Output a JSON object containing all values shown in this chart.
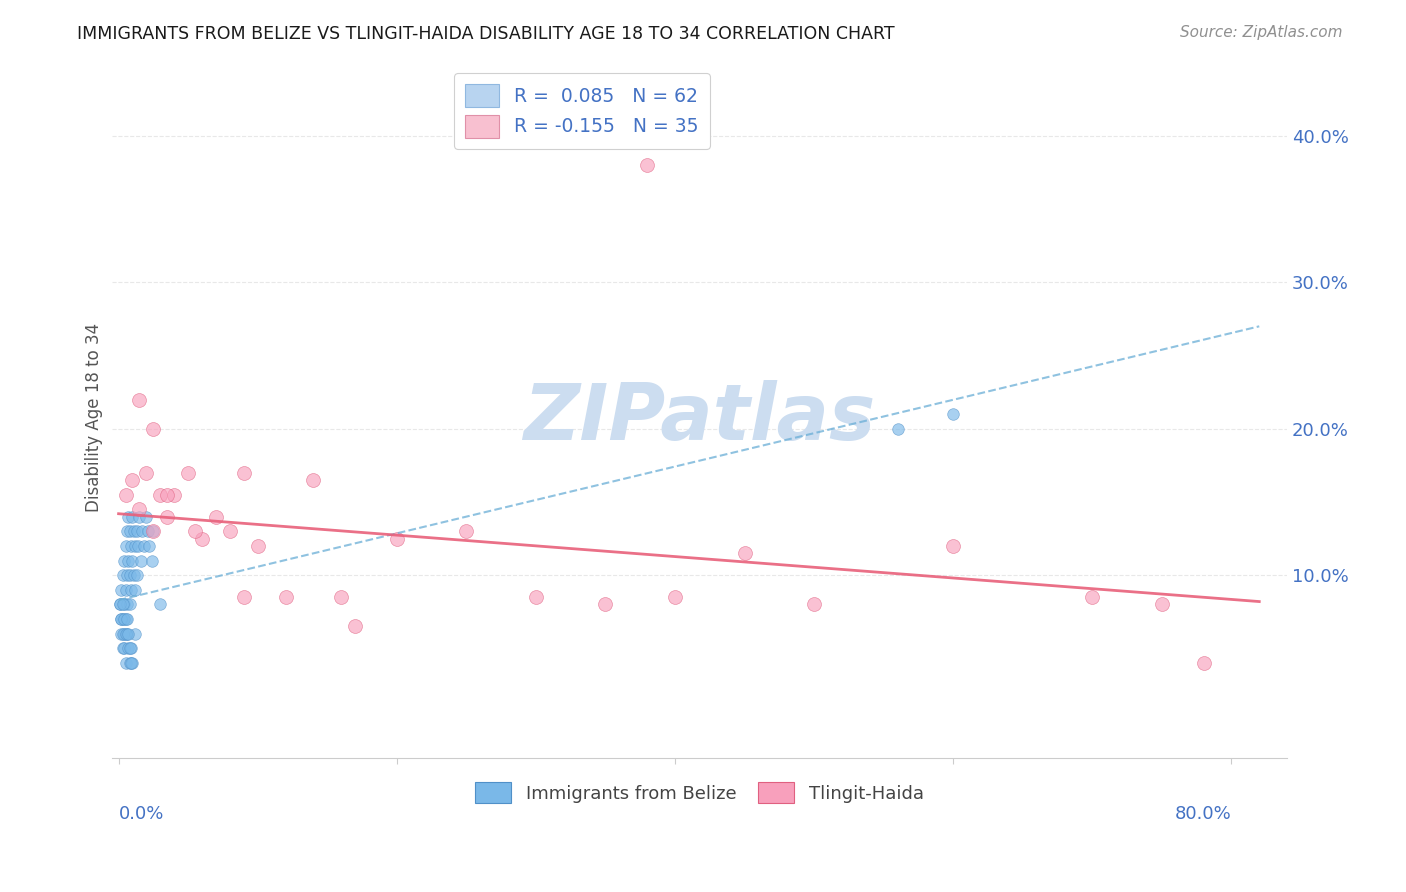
{
  "title": "IMMIGRANTS FROM BELIZE VS TLINGIT-HAIDA DISABILITY AGE 18 TO 34 CORRELATION CHART",
  "source": "Source: ZipAtlas.com",
  "ylabel": "Disability Age 18 to 34",
  "ytick_values": [
    0.0,
    0.1,
    0.2,
    0.3,
    0.4
  ],
  "ytick_labels": [
    "",
    "10.0%",
    "20.0%",
    "30.0%",
    "40.0%"
  ],
  "xtick_values": [
    0.0,
    0.2,
    0.4,
    0.6,
    0.8
  ],
  "xlim": [
    -0.005,
    0.84
  ],
  "ylim": [
    -0.025,
    0.44
  ],
  "legend_entries": [
    {
      "label": "R =  0.085   N = 62",
      "facecolor": "#b8d4f0",
      "edgecolor": "#90b8e0"
    },
    {
      "label": "R = -0.155   N = 35",
      "facecolor": "#f8c0d0",
      "edgecolor": "#e090a8"
    }
  ],
  "series_belize": {
    "facecolor": "#7ab8e8",
    "edgecolor": "#5090c8",
    "alpha": 0.65,
    "size": 70,
    "x": [
      0.001,
      0.002,
      0.002,
      0.003,
      0.003,
      0.003,
      0.004,
      0.004,
      0.004,
      0.005,
      0.005,
      0.005,
      0.006,
      0.006,
      0.006,
      0.007,
      0.007,
      0.008,
      0.008,
      0.008,
      0.009,
      0.009,
      0.01,
      0.01,
      0.011,
      0.011,
      0.012,
      0.012,
      0.013,
      0.013,
      0.014,
      0.015,
      0.016,
      0.017,
      0.018,
      0.02,
      0.021,
      0.022,
      0.024,
      0.025,
      0.002,
      0.003,
      0.004,
      0.005,
      0.006,
      0.007,
      0.008,
      0.009,
      0.01,
      0.012,
      0.001,
      0.002,
      0.003,
      0.004,
      0.005,
      0.006,
      0.007,
      0.008,
      0.009,
      0.03,
      0.56,
      0.6
    ],
    "y": [
      0.08,
      0.09,
      0.06,
      0.1,
      0.07,
      0.05,
      0.11,
      0.08,
      0.06,
      0.12,
      0.09,
      0.07,
      0.13,
      0.1,
      0.08,
      0.14,
      0.11,
      0.13,
      0.1,
      0.08,
      0.12,
      0.09,
      0.14,
      0.11,
      0.13,
      0.1,
      0.12,
      0.09,
      0.13,
      0.1,
      0.12,
      0.14,
      0.11,
      0.13,
      0.12,
      0.14,
      0.13,
      0.12,
      0.11,
      0.13,
      0.07,
      0.06,
      0.05,
      0.04,
      0.06,
      0.05,
      0.04,
      0.05,
      0.04,
      0.06,
      0.08,
      0.07,
      0.08,
      0.07,
      0.06,
      0.07,
      0.06,
      0.05,
      0.04,
      0.08,
      0.2,
      0.21
    ]
  },
  "series_tlingit": {
    "facecolor": "#f8a0bc",
    "edgecolor": "#e06080",
    "alpha": 0.65,
    "size": 100,
    "x": [
      0.005,
      0.01,
      0.015,
      0.02,
      0.025,
      0.03,
      0.035,
      0.04,
      0.05,
      0.06,
      0.07,
      0.08,
      0.09,
      0.1,
      0.12,
      0.14,
      0.16,
      0.2,
      0.25,
      0.3,
      0.35,
      0.4,
      0.45,
      0.5,
      0.6,
      0.7,
      0.75,
      0.78,
      0.015,
      0.025,
      0.035,
      0.055,
      0.09,
      0.17,
      0.38
    ],
    "y": [
      0.155,
      0.165,
      0.145,
      0.17,
      0.13,
      0.155,
      0.14,
      0.155,
      0.17,
      0.125,
      0.14,
      0.13,
      0.17,
      0.12,
      0.085,
      0.165,
      0.085,
      0.125,
      0.13,
      0.085,
      0.08,
      0.085,
      0.115,
      0.08,
      0.12,
      0.085,
      0.08,
      0.04,
      0.22,
      0.2,
      0.155,
      0.13,
      0.085,
      0.065,
      0.38
    ]
  },
  "trendline_belize": {
    "x_start": 0.0,
    "x_end": 0.82,
    "y_start": 0.083,
    "y_end": 0.27,
    "color": "#6aaed6",
    "style": "--",
    "linewidth": 1.5,
    "alpha": 0.75
  },
  "trendline_tlingit": {
    "x_start": 0.0,
    "x_end": 0.82,
    "y_start": 0.142,
    "y_end": 0.082,
    "color": "#e8607a",
    "style": "-",
    "linewidth": 2.0,
    "alpha": 0.9
  },
  "watermark": "ZIPatlas",
  "watermark_color": "#ccddf0",
  "background_color": "#ffffff",
  "grid_color": "#e8e8e8",
  "title_color": "#1a1a1a",
  "axis_label_color": "#4472c4",
  "ylabel_color": "#555555",
  "source_color": "#909090"
}
